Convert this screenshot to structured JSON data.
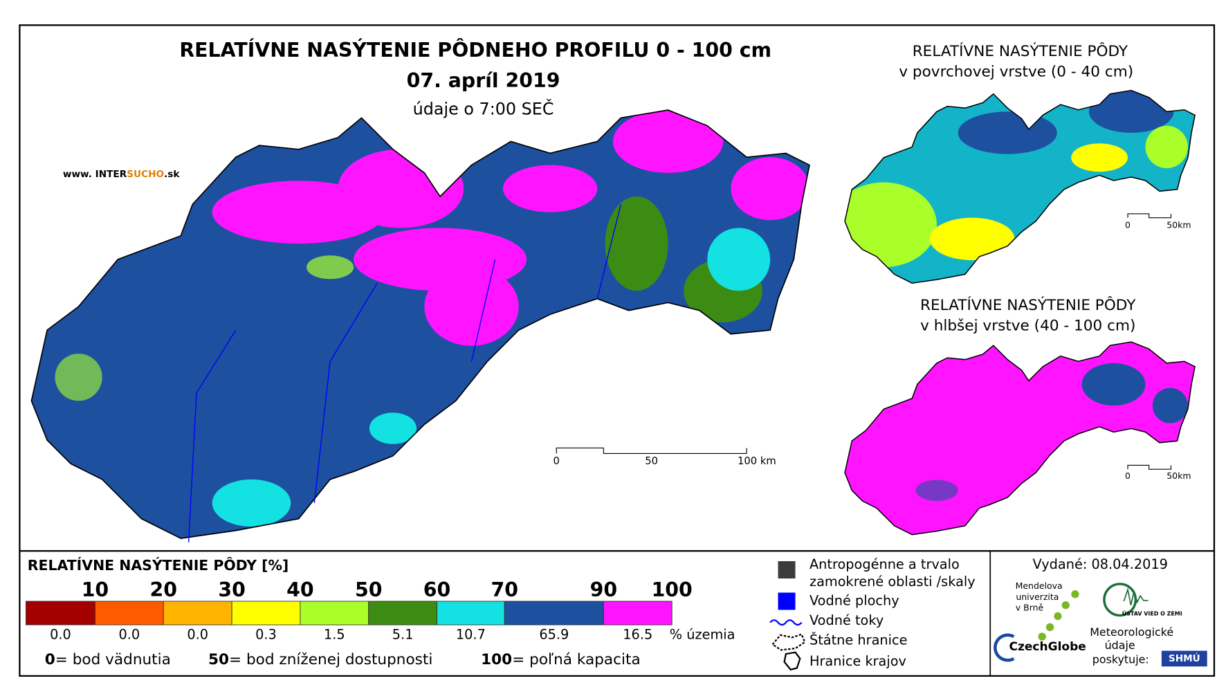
{
  "title": "RELATÍVNE NASÝTENIE PÔDNEHO PROFILU 0 - 100 cm",
  "date": "07. apríl 2019",
  "time_note": "údaje o 7:00 SEČ",
  "website": {
    "prefix": "www. INTER",
    "highlight": "SUCHO",
    "suffix": ".sk"
  },
  "main_scale": {
    "labels": [
      "0",
      "50",
      "100 km"
    ]
  },
  "insets": [
    {
      "title_line1": "RELATÍVNE NASÝTENIE PÔDY",
      "title_line2": "v povrchovej vrstve (0 - 40 cm)",
      "scale_labels": [
        "0",
        "50km"
      ]
    },
    {
      "title_line1": "RELATÍVNE NASÝTENIE PÔDY",
      "title_line2": "v hlbšej vrstve (40 - 100 cm)",
      "scale_labels": [
        "0",
        "50km"
      ]
    }
  ],
  "legend": {
    "title": "RELATÍVNE NASÝTENIE PÔDY [%]",
    "thresholds": [
      "10",
      "20",
      "30",
      "40",
      "50",
      "60",
      "70",
      "90",
      "100"
    ],
    "classes": [
      {
        "color": "#a50000",
        "share": "0.0"
      },
      {
        "color": "#ff5a00",
        "share": "0.0"
      },
      {
        "color": "#ffb400",
        "share": "0.0"
      },
      {
        "color": "#ffff00",
        "share": "0.3"
      },
      {
        "color": "#aaff2a",
        "share": "1.5"
      },
      {
        "color": "#3c8c14",
        "share": "5.1"
      },
      {
        "color": "#14e1e1",
        "share": "10.7"
      },
      {
        "color": "#1e50a0",
        "share": "65.9"
      },
      {
        "color": "#ff14ff",
        "share": "16.5"
      }
    ],
    "unit": "% územia",
    "notes": [
      {
        "value": "0",
        "text": "= bod vädnutia"
      },
      {
        "value": "50",
        "text": "= bod zníženej dostupnosti"
      },
      {
        "value": "100",
        "text": "= poľná kapacita"
      }
    ]
  },
  "symbols": {
    "anthropogenic": [
      "Antropogénne a trvalo",
      "zamokrené oblasti /skaly"
    ],
    "water_bodies": "Vodné plochy",
    "rivers": "Vodné toky",
    "state_border": "Štátne hranice",
    "regions": "Hranice krajov"
  },
  "issued": "Vydané: 08.04.2019",
  "logos": {
    "mendel": [
      "Mendelova",
      "univerzita",
      "v Brně"
    ],
    "czechglobe": "CzechGlobe",
    "ustav": "ÚSTAV VIED O ZEMI",
    "meteo": [
      "Meteorologické",
      "údaje",
      "poskytuje:"
    ],
    "shmu": "SHMÚ"
  }
}
